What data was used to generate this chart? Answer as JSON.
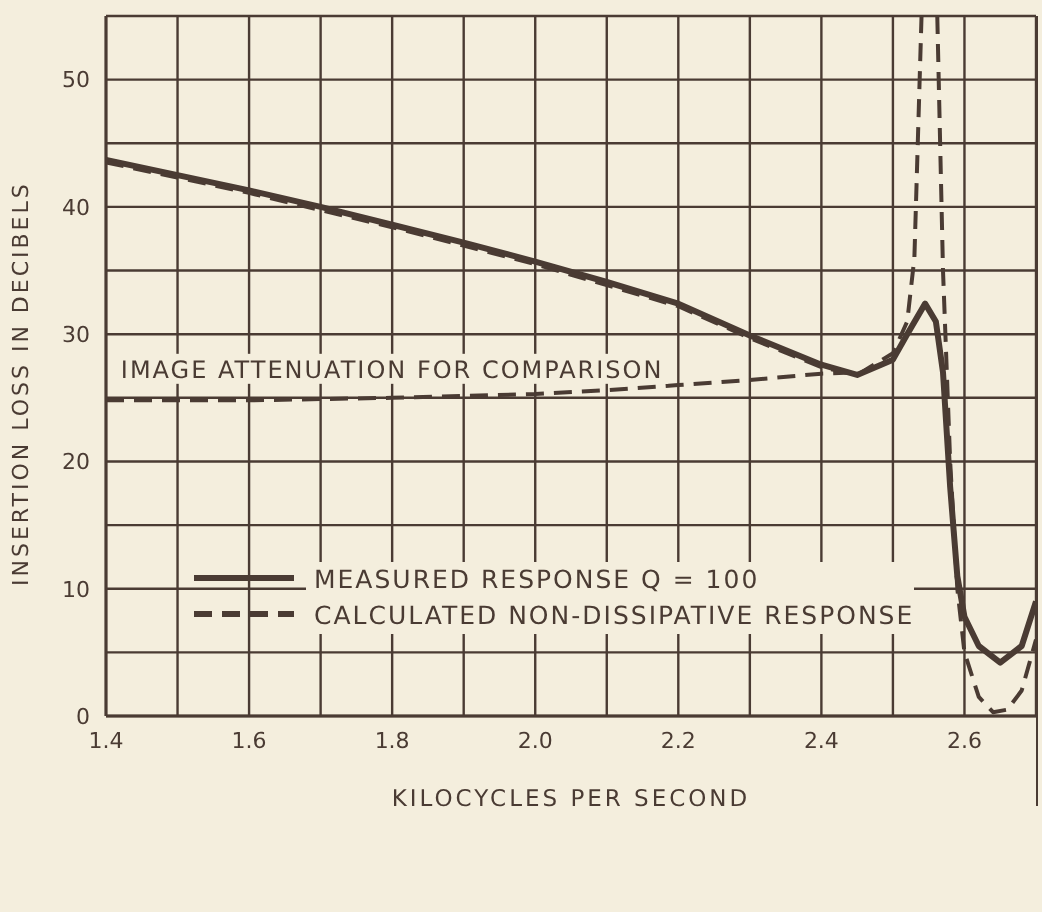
{
  "chart_data": {
    "type": "line",
    "xlabel": "KILOCYCLES PER SECOND",
    "ylabel": "INSERTION LOSS IN DECIBELS",
    "xlim": [
      1.4,
      2.7
    ],
    "xticks": [
      1.4,
      {
        "value": 1.5,
        "label": null
      },
      1.6,
      {
        "value": 1.7,
        "label": null
      },
      1.8,
      {
        "value": 1.9,
        "label": null
      },
      {
        "value": 2.0,
        "label": "2.0"
      },
      {
        "value": 2.1,
        "label": null
      },
      2.2,
      {
        "value": 2.3,
        "label": null
      },
      2.4,
      {
        "value": 2.5,
        "label": null
      },
      2.6,
      {
        "value": 2.7,
        "label": null
      }
    ],
    "ylim": [
      0,
      55
    ],
    "yticks": [
      0,
      {
        "value": 5,
        "label": null
      },
      10,
      {
        "value": 15,
        "label": null
      },
      20,
      {
        "value": 25,
        "label": null
      },
      30,
      {
        "value": 35,
        "label": null
      },
      40,
      {
        "value": 45,
        "label": null
      },
      50,
      {
        "value": 55,
        "label": null
      }
    ],
    "grid": true,
    "legend": "left",
    "series": [
      {
        "name": "MEASURED RESPONSE Q = 100",
        "color": "#4a3b33",
        "line_style": "solid",
        "x": [
          1.4,
          1.5,
          1.6,
          1.7,
          1.8,
          1.9,
          2.0,
          2.1,
          2.2,
          2.3,
          2.4,
          2.45,
          2.5,
          2.52,
          2.545,
          2.56,
          2.57,
          2.58,
          2.59,
          2.6,
          2.62,
          2.65,
          2.68,
          2.7
        ],
        "values": [
          43.7,
          42.5,
          41.3,
          40,
          38.6,
          37.2,
          35.7,
          34.1,
          32.4,
          29.9,
          27.6,
          26.8,
          28,
          30,
          32.4,
          31,
          27,
          18,
          11,
          7.8,
          5.5,
          4.2,
          5.5,
          9
        ]
      },
      {
        "name": "CALCULATED NON-DISSIPATIVE RESPONSE",
        "color": "#4a3b33",
        "line_style": "dashed",
        "x": [
          1.4,
          1.6,
          1.8,
          2.0,
          2.2,
          2.3,
          2.4,
          2.45,
          2.5,
          2.52,
          2.53,
          2.54,
          2.55,
          2.562,
          2.57,
          2.58,
          2.59,
          2.6,
          2.62,
          2.64,
          2.66,
          2.68,
          2.7
        ],
        "values": [
          43.5,
          41.1,
          38.4,
          35.5,
          32.2,
          29.7,
          27.4,
          26.8,
          28.5,
          31,
          36,
          55,
          null,
          55,
          35,
          20,
          10,
          5,
          1.5,
          0.3,
          0.5,
          2,
          6
        ]
      },
      {
        "color": "#4a3b33",
        "line_style": "dashed",
        "x": [
          1.4,
          1.6,
          1.8,
          2.0,
          2.1,
          2.2,
          2.3,
          2.4,
          2.45
        ],
        "values": [
          24.8,
          24.8,
          25,
          25.3,
          25.6,
          26,
          26.4,
          26.9,
          27
        ]
      }
    ],
    "annotations": [
      {
        "text": "IMAGE ATTENUATION FOR COMPARISON",
        "x": 1.8,
        "y": 25
      }
    ]
  }
}
